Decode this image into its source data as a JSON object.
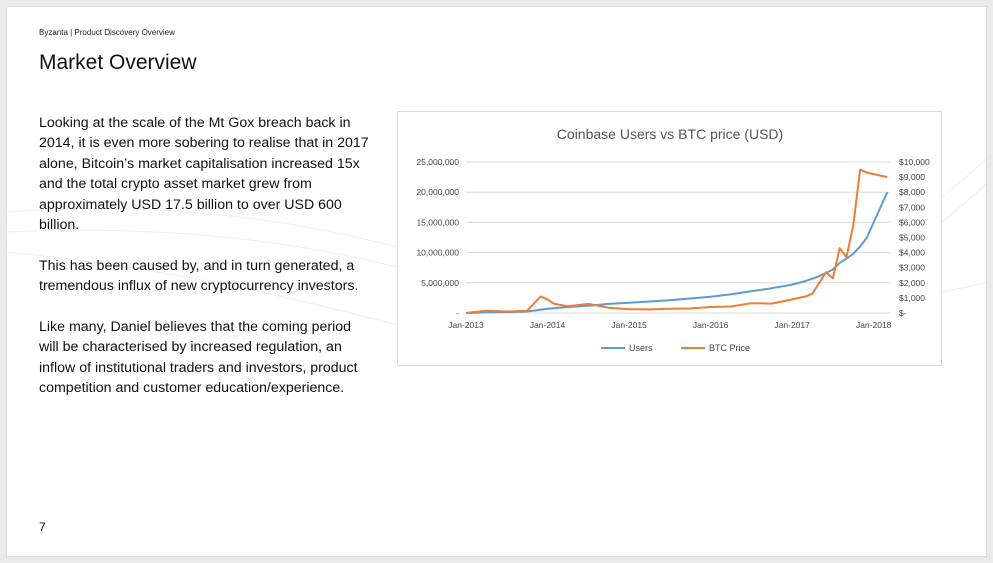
{
  "header": {
    "breadcrumb": "Byzanta | Product Discovery Overview",
    "title": "Market Overview"
  },
  "body": {
    "paragraphs": [
      "Looking at the scale of the Mt Gox breach back in 2014, it is even more sobering to realise that in 2017 alone, Bitcoin’s market capitalisation increased 15x and the total crypto asset market grew from approximately USD 17.5 billion to over USD 600 billion.",
      "This has been caused by, and in turn generated, a tremendous influx of new cryptocurrency investors.",
      "Like many, Daniel believes that the coming period will be characterised by increased regulation, an inflow of institutional traders and investors, product competition and customer education/experience."
    ]
  },
  "footer": {
    "page_number": "7"
  },
  "colors": {
    "users": "#5b9bd5",
    "btc": "#ed7d31",
    "grid": "#d9d9d9"
  },
  "chart_data": {
    "type": "line",
    "title": "Coinbase Users vs BTC price (USD)",
    "x_tick_labels": [
      "Jan-2013",
      "Jan-2014",
      "Jan-2015",
      "Jan-2016",
      "Jan-2017",
      "Jan-2018"
    ],
    "y_left": {
      "range": [
        0,
        25000000
      ],
      "tick_values": [
        0,
        5000000,
        10000000,
        15000000,
        20000000,
        25000000
      ],
      "tick_labels": [
        "-",
        "5,000,000",
        "10,000,000",
        "15,000,000",
        "20,000,000",
        "25,000,000"
      ]
    },
    "y_right": {
      "range": [
        0,
        10000
      ],
      "tick_values": [
        0,
        1000,
        2000,
        3000,
        4000,
        5000,
        6000,
        7000,
        8000,
        9000,
        10000
      ],
      "tick_labels": [
        "$-",
        "$1,000",
        "$2,000",
        "$3,000",
        "$4,000",
        "$5,000",
        "$6,000",
        "$7,000",
        "$8,000",
        "$9,000",
        "$10,000"
      ]
    },
    "grid": true,
    "legend_position": "bottom",
    "series": [
      {
        "name": "Users",
        "axis": "left",
        "points": [
          [
            "2013-01",
            0
          ],
          [
            "2013-04",
            100000
          ],
          [
            "2013-07",
            150000
          ],
          [
            "2013-10",
            250000
          ],
          [
            "2014-01",
            700000
          ],
          [
            "2014-04",
            1000000
          ],
          [
            "2014-07",
            1200000
          ],
          [
            "2014-10",
            1500000
          ],
          [
            "2015-01",
            1700000
          ],
          [
            "2015-04",
            1900000
          ],
          [
            "2015-07",
            2100000
          ],
          [
            "2015-10",
            2400000
          ],
          [
            "2016-01",
            2700000
          ],
          [
            "2016-04",
            3100000
          ],
          [
            "2016-07",
            3600000
          ],
          [
            "2016-10",
            4100000
          ],
          [
            "2017-01",
            4700000
          ],
          [
            "2017-03",
            5300000
          ],
          [
            "2017-05",
            6100000
          ],
          [
            "2017-07",
            7200000
          ],
          [
            "2017-08",
            8300000
          ],
          [
            "2017-09",
            9000000
          ],
          [
            "2017-10",
            9800000
          ],
          [
            "2017-11",
            11000000
          ],
          [
            "2017-12",
            12500000
          ],
          [
            "2018-01",
            15000000
          ],
          [
            "2018-03",
            20000000
          ]
        ]
      },
      {
        "name": "BTC Price",
        "axis": "right",
        "points": [
          [
            "2013-01",
            0
          ],
          [
            "2013-04",
            150
          ],
          [
            "2013-07",
            100
          ],
          [
            "2013-10",
            150
          ],
          [
            "2013-12",
            1100
          ],
          [
            "2014-01",
            900
          ],
          [
            "2014-02",
            600
          ],
          [
            "2014-04",
            450
          ],
          [
            "2014-07",
            600
          ],
          [
            "2014-10",
            350
          ],
          [
            "2015-01",
            250
          ],
          [
            "2015-04",
            240
          ],
          [
            "2015-07",
            280
          ],
          [
            "2015-10",
            300
          ],
          [
            "2016-01",
            400
          ],
          [
            "2016-04",
            430
          ],
          [
            "2016-07",
            650
          ],
          [
            "2016-10",
            620
          ],
          [
            "2017-01",
            900
          ],
          [
            "2017-03",
            1100
          ],
          [
            "2017-04",
            1300
          ],
          [
            "2017-05",
            2000
          ],
          [
            "2017-06",
            2700
          ],
          [
            "2017-07",
            2300
          ],
          [
            "2017-08",
            4300
          ],
          [
            "2017-09",
            3700
          ],
          [
            "2017-10",
            5800
          ],
          [
            "2017-11",
            9500
          ],
          [
            "2017-12",
            9300
          ],
          [
            "2018-03",
            9000
          ]
        ]
      }
    ]
  }
}
